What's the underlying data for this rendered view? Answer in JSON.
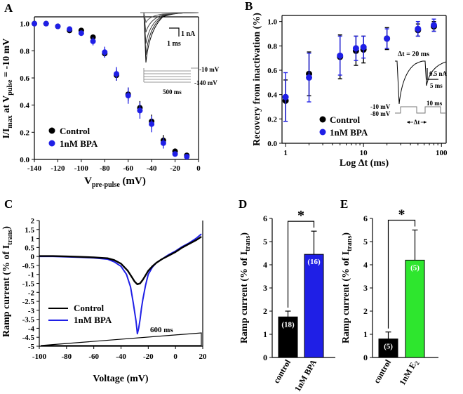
{
  "colors": {
    "control": "#000000",
    "treatment": "#1f1fe6",
    "bpa_bar": "#1f1fe6",
    "e2_bar": "#2ee62e"
  },
  "panels": {
    "A": {
      "label": "A",
      "xlabel_main": "V",
      "xlabel_sub": "pre-pulse",
      "xlabel_unit": " (mV)",
      "ylabel_main": "I/I",
      "ylabel_sub1": "max",
      "ylabel_mid": " at V",
      "ylabel_sub2": "pulse",
      "ylabel_end": " = -10 mV",
      "xticks": [
        "-140",
        "-120",
        "-100",
        "-80",
        "-60",
        "-40",
        "-20",
        "0"
      ],
      "yticks": [
        "0.0",
        "0.2",
        "0.4",
        "0.6",
        "0.8",
        "1.0"
      ],
      "legend": [
        "Control",
        "1nM BPA"
      ],
      "inset_scale_current": "1 nA",
      "inset_scale_time": "1 ms",
      "protocol_labels": [
        "-10 mV",
        "-140 mV",
        "500 ms"
      ]
    },
    "B": {
      "label": "B",
      "xlabel": "Log Δt (ms)",
      "ylabel": "Recovery from inactivation (%)",
      "xticks": [
        "1",
        "10",
        "100"
      ],
      "yticks": [
        "0.0",
        "0.2",
        "0.4",
        "0.6",
        "0.8",
        "1.0"
      ],
      "legend": [
        "Control",
        "1nM BPA"
      ],
      "inset_title": "Δt = 20 ms",
      "inset_scale_current": "0.5 nA",
      "inset_scale_time": "5 ms",
      "protocol_labels": [
        "-10 mV",
        "-80 mV",
        "10 ms",
        "Δt"
      ]
    },
    "C": {
      "label": "C",
      "xlabel": "Voltage (mV)",
      "ylabel_main": "Ramp current (% of I",
      "ylabel_sub": "trans",
      "ylabel_end": ")",
      "xticks": [
        "-100",
        "-80",
        "-60",
        "-40",
        "-20",
        "0",
        "20"
      ],
      "yticks": [
        "2",
        "1.5",
        "1",
        "0.5",
        "0",
        "-0.5",
        "-1",
        "-1.5",
        "-2",
        "-2.5",
        "-3",
        "-3.5",
        "-4",
        "-4.5",
        "-5"
      ],
      "legend": [
        "Control",
        "1nM BPA"
      ],
      "ramp_label": "600 ms"
    },
    "D": {
      "label": "D",
      "ylabel_main": "Ramp current (% of I",
      "ylabel_sub": "trans",
      "ylabel_end": ")",
      "yticks": [
        "0",
        "1",
        "2",
        "3",
        "4",
        "5",
        "6"
      ],
      "categories": [
        "control",
        "1nM BPA"
      ],
      "n_labels": [
        "(18)",
        "(16)"
      ],
      "significance": "*"
    },
    "E": {
      "label": "E",
      "ylabel_main": "Ramp current (% of I",
      "ylabel_sub": "trans",
      "ylabel_end": ")",
      "yticks": [
        "0",
        "1",
        "2",
        "3",
        "4",
        "5",
        "6"
      ],
      "categories": [
        "control",
        "1nM E"
      ],
      "category_sub": "2",
      "n_labels": [
        "(5)",
        "(5)"
      ],
      "significance": "*"
    }
  },
  "chart_data": [
    {
      "panel": "A",
      "type": "scatter",
      "xlim": [
        -140,
        0
      ],
      "ylim": [
        0,
        1.05
      ],
      "series": [
        {
          "name": "Control",
          "x": [
            -140,
            -130,
            -120,
            -110,
            -100,
            -90,
            -80,
            -70,
            -60,
            -50,
            -40,
            -30,
            -20,
            -10
          ],
          "y": [
            1.0,
            1.0,
            0.98,
            0.95,
            0.95,
            0.9,
            0.78,
            0.62,
            0.48,
            0.38,
            0.28,
            0.14,
            0.06,
            0.03
          ],
          "err": [
            0,
            0,
            0.01,
            0.01,
            0.01,
            0.01,
            0.03,
            0.04,
            0.05,
            0.05,
            0.05,
            0.04,
            0.02,
            0.01
          ]
        },
        {
          "name": "1nM BPA",
          "x": [
            -140,
            -130,
            -120,
            -110,
            -100,
            -90,
            -80,
            -70,
            -60,
            -50,
            -40,
            -30,
            -20,
            -10
          ],
          "y": [
            1.0,
            1.0,
            0.98,
            0.96,
            0.93,
            0.87,
            0.79,
            0.63,
            0.47,
            0.36,
            0.26,
            0.12,
            0.04,
            0.02
          ],
          "err": [
            0,
            0,
            0.01,
            0.01,
            0.02,
            0.03,
            0.04,
            0.05,
            0.06,
            0.06,
            0.06,
            0.04,
            0.02,
            0.01
          ]
        }
      ]
    },
    {
      "panel": "B",
      "type": "scatter",
      "xscale": "log",
      "xlim": [
        0.9,
        115
      ],
      "ylim": [
        0,
        1.05
      ],
      "series": [
        {
          "name": "Control",
          "x": [
            1,
            2,
            5,
            8,
            10,
            20,
            50,
            80
          ],
          "y": [
            0.35,
            0.57,
            0.71,
            0.76,
            0.77,
            0.86,
            0.93,
            0.96
          ],
          "err": [
            0.17,
            0.18,
            0.18,
            0.12,
            0.11,
            0.09,
            0.05,
            0.04
          ]
        },
        {
          "name": "1nM BPA",
          "x": [
            1,
            2,
            5,
            8,
            10,
            20,
            50,
            80
          ],
          "y": [
            0.38,
            0.54,
            0.72,
            0.78,
            0.79,
            0.86,
            0.94,
            0.97
          ],
          "err": [
            0.2,
            0.2,
            0.16,
            0.1,
            0.09,
            0.08,
            0.06,
            0.05
          ]
        }
      ]
    },
    {
      "panel": "C",
      "type": "line",
      "xlim": [
        -100,
        20
      ],
      "ylim": [
        -5,
        2
      ],
      "series": [
        {
          "name": "Control",
          "x": [
            -100,
            -90,
            -80,
            -70,
            -60,
            -50,
            -45,
            -40,
            -35,
            -32,
            -30,
            -28,
            -26,
            -24,
            -22,
            -20,
            -17,
            -14,
            -10,
            -5,
            0,
            5,
            10,
            15,
            19
          ],
          "y": [
            0.02,
            0.02,
            0.0,
            -0.02,
            -0.05,
            -0.1,
            -0.2,
            -0.4,
            -0.8,
            -1.15,
            -1.4,
            -1.55,
            -1.5,
            -1.3,
            -1.05,
            -0.8,
            -0.55,
            -0.35,
            -0.15,
            0.05,
            0.25,
            0.5,
            0.7,
            0.9,
            1.1
          ]
        },
        {
          "name": "1nM BPA",
          "x": [
            -100,
            -90,
            -80,
            -70,
            -60,
            -50,
            -45,
            -40,
            -36,
            -33,
            -31,
            -29,
            -28,
            -27,
            -26,
            -25,
            -24,
            -22,
            -20,
            -17,
            -14,
            -10,
            -5,
            0,
            5,
            10,
            15,
            19
          ],
          "y": [
            0.0,
            0.0,
            -0.02,
            -0.05,
            -0.08,
            -0.15,
            -0.3,
            -0.55,
            -1.0,
            -1.7,
            -2.6,
            -3.6,
            -4.3,
            -4.0,
            -3.5,
            -2.9,
            -2.4,
            -1.6,
            -1.0,
            -0.6,
            -0.35,
            -0.15,
            0.1,
            0.3,
            0.55,
            0.75,
            1.0,
            1.25
          ]
        }
      ]
    },
    {
      "panel": "D",
      "type": "bar",
      "categories": [
        "control",
        "1nM BPA"
      ],
      "values": [
        1.75,
        4.45
      ],
      "err": [
        0.25,
        1.0
      ],
      "ylim": [
        0,
        6
      ]
    },
    {
      "panel": "E",
      "type": "bar",
      "categories": [
        "control",
        "1nM E2"
      ],
      "values": [
        0.8,
        4.2
      ],
      "err": [
        0.3,
        1.3
      ],
      "ylim": [
        0,
        6
      ]
    }
  ]
}
